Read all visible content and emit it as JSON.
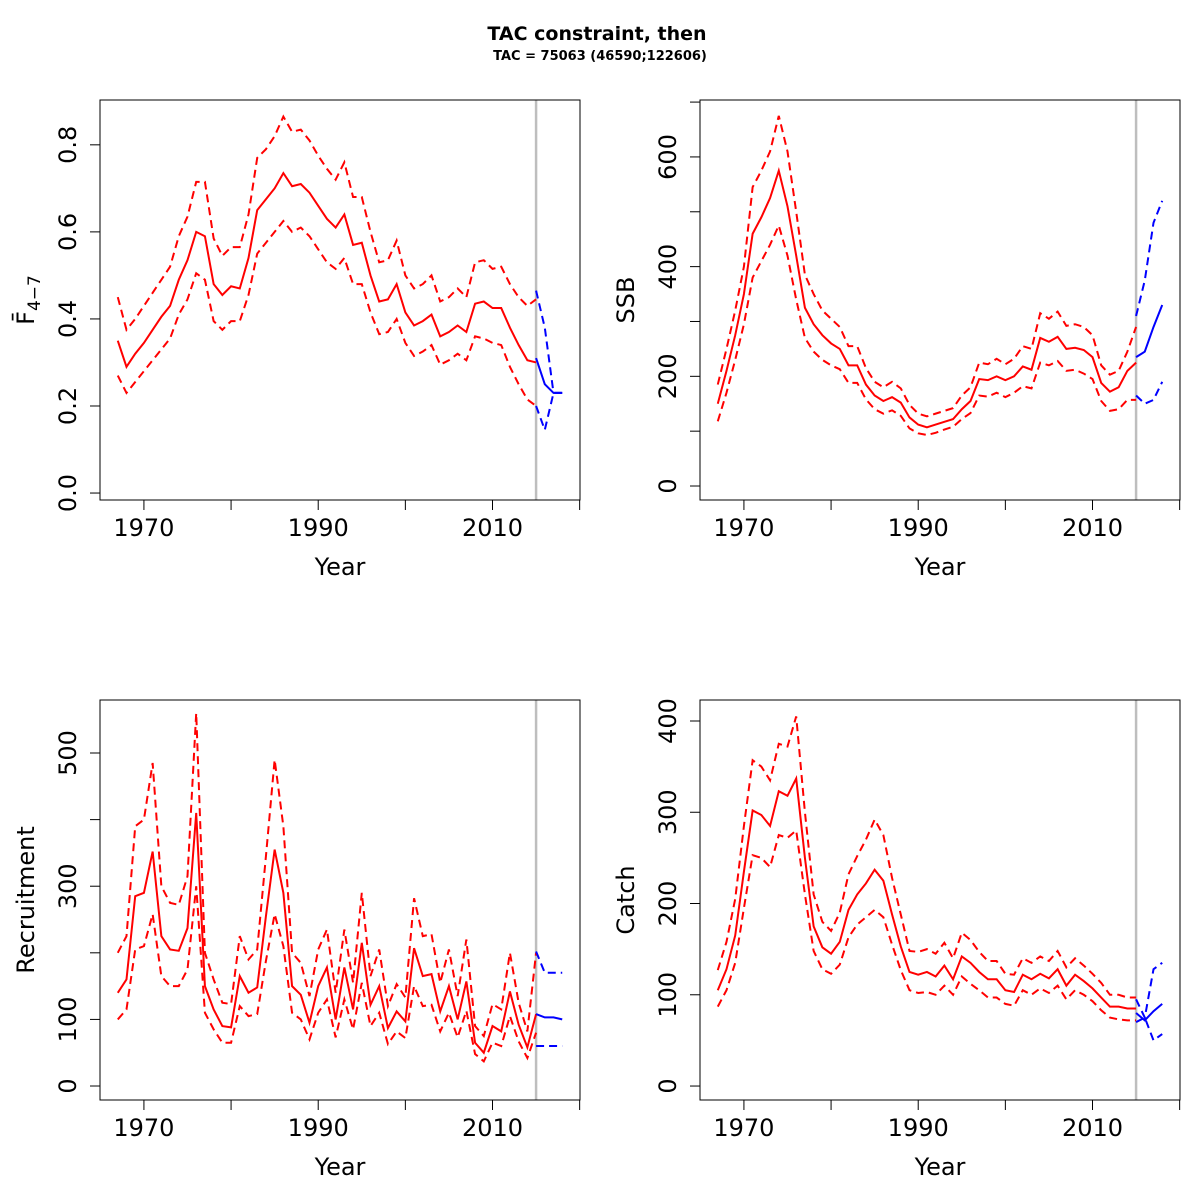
{
  "title": "TAC constraint, then",
  "subtitle": "TAC = 75063 (46590;122606)",
  "chart_data": [
    {
      "type": "line",
      "xlabel": "Year",
      "ylabel": "F̄",
      "ylabel_sub": "4−7",
      "x": [
        1967,
        1968,
        1969,
        1970,
        1971,
        1972,
        1973,
        1974,
        1975,
        1976,
        1977,
        1978,
        1979,
        1980,
        1981,
        1982,
        1983,
        1984,
        1985,
        1986,
        1987,
        1988,
        1989,
        1990,
        1991,
        1992,
        1993,
        1994,
        1995,
        1996,
        1997,
        1998,
        1999,
        2000,
        2001,
        2002,
        2003,
        2004,
        2005,
        2006,
        2007,
        2008,
        2009,
        2010,
        2011,
        2012,
        2013,
        2014,
        2015
      ],
      "xlim": [
        1964.96,
        2020.04
      ],
      "xticks": [
        1970,
        1990,
        2010
      ],
      "xticks_unlabeled": [
        1980,
        2000,
        2020
      ],
      "ylim": [
        -0.016,
        0.903
      ],
      "yticks": [
        {
          "value": 0,
          "label": "0.0"
        },
        0.2,
        0.4,
        0.6,
        0.8
      ],
      "yticks_unlabeled": [],
      "vline": 2015,
      "vline_color": "#bebebe",
      "series": [
        {
          "color": "#ff0000",
          "dash": false,
          "values": [
            0.35,
            0.29,
            0.32,
            0.345,
            0.375,
            0.405,
            0.43,
            0.49,
            0.535,
            0.6,
            0.59,
            0.48,
            0.455,
            0.475,
            0.47,
            0.54,
            0.65,
            0.675,
            0.7,
            0.735,
            0.705,
            0.71,
            0.69,
            0.66,
            0.63,
            0.61,
            0.64,
            0.57,
            0.575,
            0.5,
            0.44,
            0.445,
            0.48,
            0.415,
            0.385,
            0.395,
            0.41,
            0.36,
            0.37,
            0.385,
            0.37,
            0.435,
            0.44,
            0.425,
            0.425,
            0.38,
            0.34,
            0.305,
            0.3
          ]
        },
        {
          "color": "#ff0000",
          "dash": true,
          "values": [
            0.45,
            0.375,
            0.4,
            0.43,
            0.46,
            0.49,
            0.52,
            0.59,
            0.635,
            0.715,
            0.715,
            0.585,
            0.545,
            0.565,
            0.565,
            0.64,
            0.77,
            0.79,
            0.82,
            0.865,
            0.83,
            0.835,
            0.81,
            0.775,
            0.745,
            0.72,
            0.76,
            0.68,
            0.68,
            0.6,
            0.53,
            0.535,
            0.58,
            0.5,
            0.47,
            0.48,
            0.5,
            0.44,
            0.45,
            0.47,
            0.45,
            0.53,
            0.535,
            0.515,
            0.52,
            0.48,
            0.45,
            0.43,
            0.445
          ]
        },
        {
          "color": "#ff0000",
          "dash": true,
          "values": [
            0.27,
            0.23,
            0.255,
            0.28,
            0.305,
            0.33,
            0.355,
            0.41,
            0.445,
            0.505,
            0.49,
            0.395,
            0.375,
            0.395,
            0.395,
            0.455,
            0.55,
            0.575,
            0.6,
            0.625,
            0.6,
            0.61,
            0.59,
            0.56,
            0.53,
            0.515,
            0.54,
            0.48,
            0.48,
            0.415,
            0.365,
            0.37,
            0.4,
            0.345,
            0.315,
            0.325,
            0.34,
            0.295,
            0.305,
            0.32,
            0.305,
            0.36,
            0.355,
            0.345,
            0.34,
            0.29,
            0.25,
            0.215,
            0.2
          ]
        },
        {
          "color": "#0000ff",
          "dash": false,
          "x": [
            2015,
            2016,
            2017,
            2018
          ],
          "values": [
            0.31,
            0.25,
            0.23,
            0.23
          ]
        },
        {
          "color": "#0000ff",
          "dash": true,
          "x": [
            2015,
            2016,
            2017,
            2018
          ],
          "values": [
            0.465,
            0.38,
            0.23,
            0.23
          ]
        },
        {
          "color": "#0000ff",
          "dash": true,
          "x": [
            2015,
            2016,
            2017,
            2018
          ],
          "values": [
            0.2,
            0.145,
            0.23,
            0.23
          ]
        }
      ]
    },
    {
      "type": "line",
      "xlabel": "Year",
      "ylabel": "SSB",
      "x": [
        1967,
        1968,
        1969,
        1970,
        1971,
        1972,
        1973,
        1974,
        1975,
        1976,
        1977,
        1978,
        1979,
        1980,
        1981,
        1982,
        1983,
        1984,
        1985,
        1986,
        1987,
        1988,
        1989,
        1990,
        1991,
        1992,
        1993,
        1994,
        1995,
        1996,
        1997,
        1998,
        1999,
        2000,
        2001,
        2002,
        2003,
        2004,
        2005,
        2006,
        2007,
        2008,
        2009,
        2010,
        2011,
        2012,
        2013,
        2014,
        2015
      ],
      "xlim": [
        1964.96,
        2020.04
      ],
      "xticks": [
        1970,
        1990,
        2010
      ],
      "xticks_unlabeled": [
        1980,
        2000,
        2020
      ],
      "ylim": [
        -25.5,
        703.8
      ],
      "yticks": [
        0,
        200,
        400,
        600
      ],
      "yticks_unlabeled": [
        100,
        300,
        500,
        700
      ],
      "vline": 2015,
      "vline_color": "#bebebe",
      "series": [
        {
          "color": "#ff0000",
          "dash": false,
          "values": [
            150,
            210,
            275,
            350,
            460,
            490,
            525,
            575,
            510,
            420,
            325,
            295,
            275,
            260,
            250,
            220,
            220,
            185,
            165,
            155,
            162,
            152,
            125,
            112,
            107,
            112,
            117,
            122,
            140,
            155,
            195,
            193,
            200,
            193,
            200,
            218,
            212,
            270,
            263,
            272,
            250,
            252,
            248,
            235,
            188,
            172,
            180,
            210,
            225
          ]
        },
        {
          "color": "#ff0000",
          "dash": true,
          "values": [
            185,
            250,
            320,
            400,
            545,
            575,
            610,
            675,
            610,
            500,
            385,
            350,
            320,
            305,
            290,
            255,
            255,
            215,
            190,
            180,
            190,
            178,
            148,
            132,
            127,
            132,
            137,
            142,
            165,
            180,
            225,
            222,
            232,
            222,
            232,
            255,
            250,
            315,
            305,
            318,
            292,
            295,
            290,
            275,
            220,
            203,
            210,
            245,
            290
          ]
        },
        {
          "color": "#ff0000",
          "dash": true,
          "values": [
            118,
            170,
            230,
            295,
            380,
            410,
            440,
            475,
            420,
            340,
            270,
            245,
            230,
            220,
            213,
            188,
            188,
            158,
            140,
            132,
            138,
            128,
            105,
            96,
            93,
            97,
            103,
            108,
            122,
            133,
            165,
            163,
            170,
            162,
            170,
            182,
            178,
            225,
            220,
            228,
            210,
            212,
            205,
            195,
            155,
            137,
            140,
            157,
            157
          ]
        },
        {
          "color": "#0000ff",
          "dash": false,
          "x": [
            2015,
            2016,
            2017,
            2018
          ],
          "values": [
            235,
            245,
            290,
            330
          ]
        },
        {
          "color": "#0000ff",
          "dash": true,
          "x": [
            2015,
            2016,
            2017,
            2018
          ],
          "values": [
            310,
            375,
            480,
            520
          ]
        },
        {
          "color": "#0000ff",
          "dash": true,
          "x": [
            2015,
            2016,
            2017,
            2018
          ],
          "values": [
            165,
            150,
            157,
            190
          ]
        }
      ]
    },
    {
      "type": "line",
      "xlabel": "Year",
      "ylabel": "Recruitment",
      "x": [
        1967,
        1968,
        1969,
        1970,
        1971,
        1972,
        1973,
        1974,
        1975,
        1976,
        1977,
        1978,
        1979,
        1980,
        1981,
        1982,
        1983,
        1984,
        1985,
        1986,
        1987,
        1988,
        1989,
        1990,
        1991,
        1992,
        1993,
        1994,
        1995,
        1996,
        1997,
        1998,
        1999,
        2000,
        2001,
        2002,
        2003,
        2004,
        2005,
        2006,
        2007,
        2008,
        2009,
        2010,
        2011,
        2012,
        2013,
        2014,
        2015
      ],
      "xlim": [
        1964.96,
        2020.04
      ],
      "xticks": [
        1970,
        1990,
        2010
      ],
      "xticks_unlabeled": [
        1980,
        2000,
        2020
      ],
      "ylim": [
        -21,
        579.6
      ],
      "yticks": [
        0,
        100,
        300,
        500
      ],
      "yticks_unlabeled": [
        200,
        400
      ],
      "vline": 2015,
      "vline_color": "#bebebe",
      "series": [
        {
          "color": "#ff0000",
          "dash": false,
          "values": [
            140,
            160,
            285,
            290,
            352,
            225,
            205,
            203,
            237,
            410,
            150,
            115,
            90,
            88,
            165,
            140,
            148,
            255,
            355,
            290,
            150,
            137,
            95,
            150,
            178,
            100,
            178,
            115,
            215,
            122,
            150,
            87,
            112,
            97,
            207,
            165,
            168,
            112,
            150,
            100,
            157,
            65,
            50,
            90,
            82,
            142,
            92,
            58,
            108
          ]
        },
        {
          "color": "#ff0000",
          "dash": true,
          "values": [
            200,
            225,
            390,
            400,
            485,
            300,
            275,
            272,
            315,
            560,
            200,
            160,
            125,
            123,
            225,
            190,
            205,
            345,
            490,
            390,
            200,
            185,
            135,
            205,
            235,
            140,
            235,
            155,
            290,
            165,
            205,
            120,
            153,
            133,
            282,
            225,
            228,
            155,
            205,
            135,
            220,
            90,
            75,
            123,
            115,
            200,
            125,
            82,
            200
          ]
        },
        {
          "color": "#ff0000",
          "dash": true,
          "values": [
            100,
            115,
            205,
            210,
            258,
            165,
            150,
            150,
            175,
            300,
            110,
            85,
            65,
            65,
            120,
            105,
            108,
            188,
            258,
            210,
            110,
            100,
            70,
            110,
            130,
            73,
            130,
            85,
            155,
            90,
            110,
            63,
            82,
            72,
            150,
            120,
            122,
            82,
            110,
            73,
            113,
            48,
            37,
            65,
            60,
            105,
            67,
            42,
            80
          ]
        },
        {
          "color": "#0000ff",
          "dash": false,
          "x": [
            2015,
            2016,
            2017,
            2018
          ],
          "values": [
            108,
            103,
            103,
            100
          ]
        },
        {
          "color": "#0000ff",
          "dash": true,
          "x": [
            2015,
            2016,
            2017,
            2018
          ],
          "values": [
            202,
            170,
            170,
            170
          ]
        },
        {
          "color": "#0000ff",
          "dash": true,
          "x": [
            2015,
            2016,
            2017,
            2018
          ],
          "values": [
            60,
            60,
            60,
            60
          ]
        }
      ]
    },
    {
      "type": "line",
      "xlabel": "Year",
      "ylabel": "Catch",
      "x": [
        1967,
        1968,
        1969,
        1970,
        1971,
        1972,
        1973,
        1974,
        1975,
        1976,
        1977,
        1978,
        1979,
        1980,
        1981,
        1982,
        1983,
        1984,
        1985,
        1986,
        1987,
        1988,
        1989,
        1990,
        1991,
        1992,
        1993,
        1994,
        1995,
        1996,
        1997,
        1998,
        1999,
        2000,
        2001,
        2002,
        2003,
        2004,
        2005,
        2006,
        2007,
        2008,
        2009,
        2010,
        2011,
        2012,
        2013,
        2014,
        2015
      ],
      "xlim": [
        1964.96,
        2020.04
      ],
      "xticks": [
        1970,
        1990,
        2010
      ],
      "xticks_unlabeled": [
        1980,
        2000,
        2020
      ],
      "ylim": [
        -15.3,
        423
      ],
      "yticks": [
        0,
        100,
        200,
        300,
        400
      ],
      "yticks_unlabeled": [],
      "vline": 2015,
      "vline_color": "#bebebe",
      "series": [
        {
          "color": "#ff0000",
          "dash": false,
          "values": [
            105,
            128,
            165,
            235,
            302,
            297,
            285,
            323,
            318,
            337,
            250,
            175,
            152,
            145,
            158,
            193,
            210,
            222,
            237,
            225,
            188,
            153,
            125,
            122,
            125,
            120,
            132,
            117,
            142,
            135,
            125,
            117,
            117,
            105,
            103,
            122,
            117,
            123,
            118,
            128,
            110,
            122,
            115,
            107,
            97,
            87,
            87,
            85,
            85
          ]
        },
        {
          "color": "#ff0000",
          "dash": true,
          "values": [
            127,
            158,
            205,
            285,
            357,
            350,
            335,
            375,
            372,
            405,
            300,
            210,
            180,
            170,
            190,
            232,
            252,
            270,
            292,
            275,
            228,
            188,
            148,
            147,
            150,
            145,
            157,
            140,
            168,
            160,
            147,
            137,
            137,
            123,
            122,
            140,
            135,
            142,
            137,
            148,
            130,
            140,
            132,
            123,
            113,
            100,
            100,
            97,
            97
          ]
        },
        {
          "color": "#ff0000",
          "dash": true,
          "values": [
            87,
            105,
            135,
            195,
            253,
            250,
            240,
            275,
            272,
            280,
            210,
            148,
            128,
            123,
            133,
            163,
            177,
            185,
            193,
            185,
            155,
            127,
            105,
            102,
            103,
            100,
            110,
            100,
            120,
            112,
            105,
            97,
            97,
            90,
            88,
            105,
            100,
            107,
            102,
            110,
            95,
            105,
            100,
            93,
            83,
            75,
            73,
            72,
            72
          ]
        },
        {
          "color": "#0000ff",
          "dash": false,
          "x": [
            2015,
            2016,
            2017,
            2018
          ],
          "values": [
            80,
            72,
            82,
            90
          ]
        },
        {
          "color": "#0000ff",
          "dash": true,
          "x": [
            2015,
            2016,
            2017,
            2018
          ],
          "values": [
            95,
            75,
            128,
            135
          ]
        },
        {
          "color": "#0000ff",
          "dash": true,
          "x": [
            2015,
            2016,
            2017,
            2018
          ],
          "values": [
            70,
            75,
            50,
            57
          ]
        }
      ]
    }
  ]
}
